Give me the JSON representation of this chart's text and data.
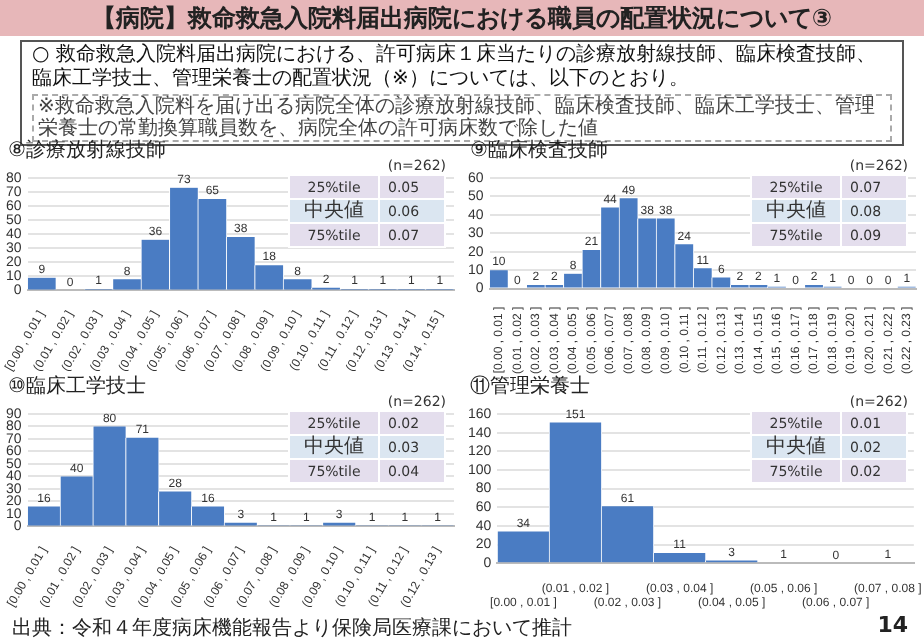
{
  "chart_data": [
    {
      "type": "other",
      "title": "【病院】救命救急入院料届出病院における職員の配置状況について③",
      "annotations": [
        "○ 救命救急入院料届出病院における、許可病床１床当たりの診療放射線技師、臨床検査技師、臨床工学技士、管理栄養士の配置状況（※）については、以下のとおり。",
        "※救命救急入院料を届け出る病院全体の診療放射線技師、臨床検査技師、臨床工学技士、管理栄養士の常勤換算職員数を、病院全体の許可病床数で除した値",
        "出典：令和４年度病床機能報告より保険局医療課において推計",
        "14"
      ]
    },
    {
      "type": "bar",
      "title": "⑧診療放射線技師",
      "categories": [
        "[0.00 , 0.01 ]",
        "(0.01 , 0.02 ]",
        "(0.02 , 0.03 ]",
        "(0.03 , 0.04 ]",
        "(0.04 , 0.05 ]",
        "(0.05 , 0.06 ]",
        "(0.06 , 0.07 ]",
        "(0.07 , 0.08 ]",
        "(0.08 , 0.09 ]",
        "(0.09 , 0.10 ]",
        "(0.10 , 0.11 ]",
        "(0.11 , 0.12 ]",
        "(0.12 , 0.13 ]",
        "(0.13 , 0.14 ]",
        "(0.14 , 0.15 ]"
      ],
      "values": [
        9,
        0,
        1,
        8,
        36,
        73,
        65,
        38,
        18,
        8,
        2,
        1,
        1,
        1,
        1
      ],
      "color": "#4a7cc3",
      "ylim": [
        0,
        80
      ],
      "yticks": [
        0,
        10,
        20,
        30,
        40,
        50,
        60,
        70,
        80
      ],
      "grid": "y",
      "data_labels": true,
      "legend": false,
      "annotations": [
        "(n=262)",
        "25%tile",
        "0.05",
        "中央値",
        "0.06",
        "75%tile",
        "0.07"
      ]
    },
    {
      "type": "bar",
      "title": "⑨臨床検査技師",
      "categories": [
        "[0.00 , 0.01 ]",
        "(0.01 , 0.02 ]",
        "(0.02 , 0.03 ]",
        "(0.03 , 0.04 ]",
        "(0.04 , 0.05 ]",
        "(0.05 , 0.06 ]",
        "(0.06 , 0.07 ]",
        "(0.07 , 0.08 ]",
        "(0.08 , 0.09 ]",
        "(0.09 , 0.10 ]",
        "(0.10 , 0.11 ]",
        "(0.11 , 0.12 ]",
        "(0.12 , 0.13 ]",
        "(0.13 , 0.14 ]",
        "(0.14 , 0.15 ]",
        "(0.15 , 0.16 ]",
        "(0.16 , 0.17 ]",
        "(0.17 , 0.18 ]",
        "(0.18 , 0.19 ]",
        "(0.19 , 0.20 ]",
        "(0.20 , 0.21 ]",
        "(0.21 , 0.22 ]",
        "(0.22 , 0.23 ]"
      ],
      "values": [
        10,
        0,
        2,
        2,
        8,
        21,
        44,
        49,
        38,
        38,
        24,
        11,
        6,
        2,
        2,
        1,
        0,
        2,
        1,
        0,
        0,
        0,
        1
      ],
      "color": "#4a7cc3",
      "ylim": [
        0,
        60
      ],
      "yticks": [
        0,
        10,
        20,
        30,
        40,
        50,
        60
      ],
      "grid": "y",
      "data_labels": true,
      "legend": false,
      "annotations": [
        "(n=262)",
        "25%tile",
        "0.07",
        "中央値",
        "0.08",
        "75%tile",
        "0.09"
      ]
    },
    {
      "type": "bar",
      "title": "⑩臨床工学技士",
      "categories": [
        "[0.00 , 0.01 ]",
        "(0.01 , 0.02 ]",
        "(0.02 , 0.03 ]",
        "(0.03 , 0.04 ]",
        "(0.04 , 0.05 ]",
        "(0.05 , 0.06 ]",
        "(0.06 , 0.07 ]",
        "(0.07 , 0.08 ]",
        "(0.08 , 0.09 ]",
        "(0.09 , 0.10 ]",
        "(0.10 , 0.11 ]",
        "(0.11 , 0.12 ]",
        "(0.12 , 0.13 ]"
      ],
      "values": [
        16,
        40,
        80,
        71,
        28,
        16,
        3,
        1,
        1,
        3,
        1,
        1,
        1
      ],
      "color": "#4a7cc3",
      "ylim": [
        0,
        90
      ],
      "yticks": [
        0,
        10,
        20,
        30,
        40,
        50,
        60,
        70,
        80,
        90
      ],
      "grid": "y",
      "data_labels": true,
      "legend": false,
      "annotations": [
        "(n=262)",
        "25%tile",
        "0.02",
        "中央値",
        "0.03",
        "75%tile",
        "0.04"
      ]
    },
    {
      "type": "bar",
      "title": "⑪管理栄養士",
      "categories": [
        "[0.00 , 0.01 ]",
        "(0.01 , 0.02 ]",
        "(0.02 , 0.03 ]",
        "(0.03 , 0.04 ]",
        "(0.04 , 0.05 ]",
        "(0.05 , 0.06 ]",
        "(0.06 , 0.07 ]",
        "(0.07 , 0.08 ]"
      ],
      "values": [
        34,
        151,
        61,
        11,
        3,
        1,
        0,
        1
      ],
      "color": "#4a7cc3",
      "ylim": [
        0,
        160
      ],
      "yticks": [
        0,
        20,
        40,
        60,
        80,
        100,
        120,
        140,
        160
      ],
      "grid": "y",
      "data_labels": true,
      "legend": false,
      "annotations": [
        "(n=262)",
        "25%tile",
        "0.01",
        "中央値",
        "0.02",
        "75%tile",
        "0.02"
      ]
    }
  ]
}
